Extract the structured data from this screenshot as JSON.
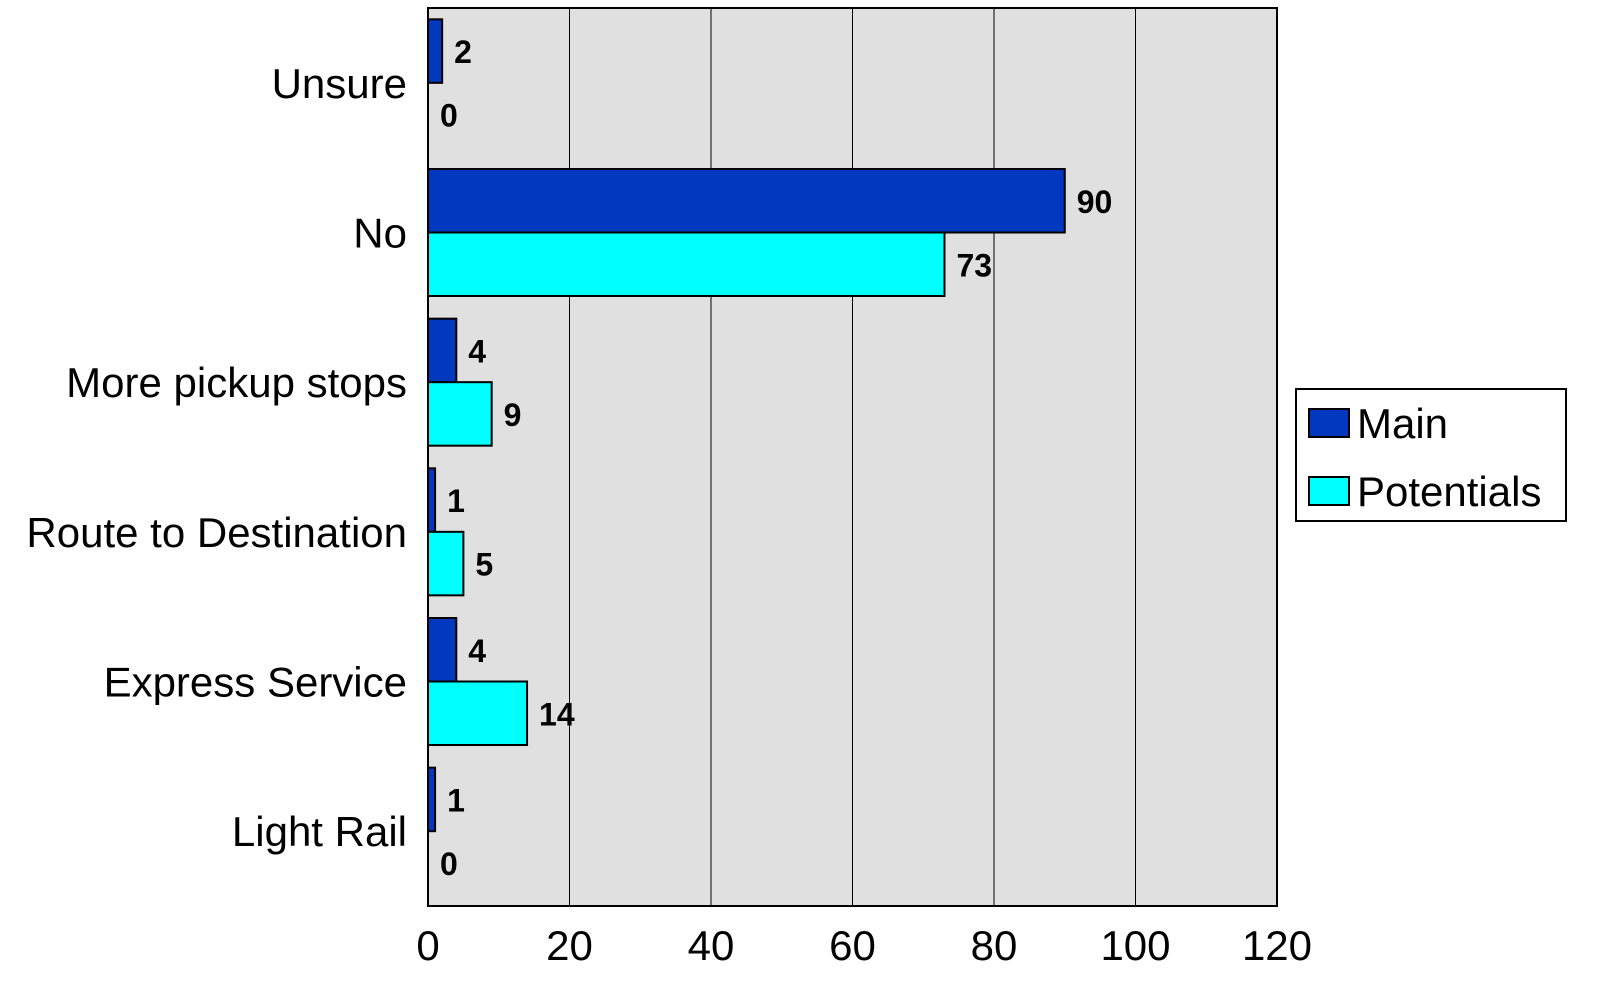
{
  "chart_data": {
    "type": "bar",
    "orientation": "horizontal",
    "categories": [
      "Unsure",
      "No",
      "More pickup stops",
      "Route to Destination",
      "Express Service",
      "Light Rail"
    ],
    "series": [
      {
        "name": "Main",
        "values": [
          2,
          90,
          4,
          1,
          4,
          1
        ],
        "color": "#0039C0"
      },
      {
        "name": "Potentials",
        "values": [
          0,
          73,
          9,
          5,
          14,
          0
        ],
        "color": "#00FFFF"
      }
    ],
    "xlim": [
      0,
      120
    ],
    "xticks": [
      "0",
      "20",
      "40",
      "60",
      "80",
      "100",
      "120"
    ],
    "grid": true,
    "plot_background": "#E0E0E0",
    "legend_position": "right"
  }
}
